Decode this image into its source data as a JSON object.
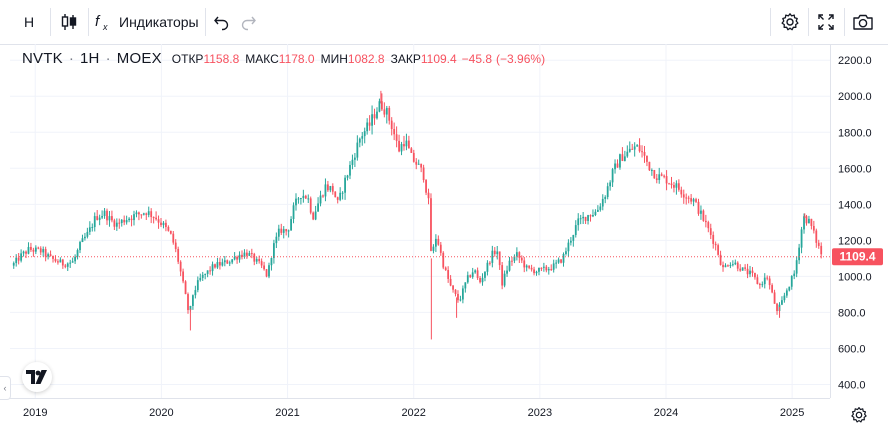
{
  "toolbar": {
    "interval_label": "Н",
    "indicators_label": "Индикаторы",
    "icons": [
      "candles-icon",
      "fx-icon",
      "undo-icon",
      "redo-icon",
      "settings-icon",
      "fullscreen-icon",
      "camera-icon"
    ]
  },
  "legend": {
    "symbol": "NVTK",
    "interval": "1H",
    "exchange": "MOEX",
    "open_label": "ОТКР",
    "open_value": "1158.8",
    "high_label": "МАКС",
    "high_value": "1178.0",
    "low_label": "МИН",
    "low_value": "1082.8",
    "close_label": "ЗАКР",
    "close_value": "1109.4",
    "change_value": "−45.8",
    "change_percent": "(−3.96%)"
  },
  "colors": {
    "up": "#26a69a",
    "down": "#f7525f",
    "grid": "#f0f3fa",
    "last_price_line": "#f7525f"
  },
  "chart_data": {
    "type": "candlestick",
    "x_unit": "year",
    "x_ticks": [
      "2019",
      "2020",
      "2021",
      "2022",
      "2023",
      "2024",
      "2025"
    ],
    "y_ticks": [
      "2200.0",
      "2000.0",
      "1800.0",
      "1600.0",
      "1400.0",
      "1200.0",
      "1000.0",
      "800.0",
      "600.0",
      "400.0"
    ],
    "ylim": [
      325,
      2290
    ],
    "xlim": [
      2018.8,
      2025.3
    ],
    "last_price": 1109.4,
    "last_price_label": "1109.4",
    "grid": true,
    "path": [
      [
        2018.82,
        1060
      ],
      [
        2018.88,
        1110
      ],
      [
        2018.95,
        1150
      ],
      [
        2019.05,
        1140
      ],
      [
        2019.12,
        1100
      ],
      [
        2019.22,
        1070
      ],
      [
        2019.3,
        1080
      ],
      [
        2019.36,
        1180
      ],
      [
        2019.42,
        1240
      ],
      [
        2019.48,
        1330
      ],
      [
        2019.55,
        1350
      ],
      [
        2019.6,
        1310
      ],
      [
        2019.65,
        1290
      ],
      [
        2019.72,
        1320
      ],
      [
        2019.8,
        1340
      ],
      [
        2019.88,
        1360
      ],
      [
        2019.95,
        1330
      ],
      [
        2020.02,
        1280
      ],
      [
        2020.08,
        1220
      ],
      [
        2020.12,
        1130
      ],
      [
        2020.16,
        1000
      ],
      [
        2020.2,
        860
      ],
      [
        2020.22,
        780
      ],
      [
        2020.25,
        900
      ],
      [
        2020.3,
        980
      ],
      [
        2020.36,
        1020
      ],
      [
        2020.42,
        1060
      ],
      [
        2020.48,
        1070
      ],
      [
        2020.55,
        1090
      ],
      [
        2020.62,
        1120
      ],
      [
        2020.68,
        1130
      ],
      [
        2020.74,
        1090
      ],
      [
        2020.8,
        1050
      ],
      [
        2020.84,
        1000
      ],
      [
        2020.88,
        1150
      ],
      [
        2020.94,
        1260
      ],
      [
        2021.0,
        1250
      ],
      [
        2021.05,
        1380
      ],
      [
        2021.1,
        1460
      ],
      [
        2021.16,
        1440
      ],
      [
        2021.2,
        1330
      ],
      [
        2021.25,
        1420
      ],
      [
        2021.3,
        1500
      ],
      [
        2021.36,
        1480
      ],
      [
        2021.4,
        1400
      ],
      [
        2021.45,
        1520
      ],
      [
        2021.52,
        1660
      ],
      [
        2021.58,
        1780
      ],
      [
        2021.65,
        1840
      ],
      [
        2021.7,
        1920
      ],
      [
        2021.74,
        1960
      ],
      [
        2021.78,
        1920
      ],
      [
        2021.83,
        1830
      ],
      [
        2021.88,
        1700
      ],
      [
        2021.93,
        1760
      ],
      [
        2021.98,
        1660
      ],
      [
        2022.03,
        1620
      ],
      [
        2022.08,
        1560
      ],
      [
        2022.12,
        1400
      ],
      [
        2022.14,
        1100
      ],
      [
        2022.18,
        1230
      ],
      [
        2022.24,
        1050
      ],
      [
        2022.3,
        930
      ],
      [
        2022.36,
        860
      ],
      [
        2022.42,
        980
      ],
      [
        2022.48,
        1040
      ],
      [
        2022.52,
        960
      ],
      [
        2022.57,
        1040
      ],
      [
        2022.62,
        1120
      ],
      [
        2022.66,
        1150
      ],
      [
        2022.7,
        960
      ],
      [
        2022.76,
        1080
      ],
      [
        2022.82,
        1120
      ],
      [
        2022.9,
        1040
      ],
      [
        2022.98,
        1030
      ],
      [
        2023.05,
        1040
      ],
      [
        2023.12,
        1060
      ],
      [
        2023.18,
        1100
      ],
      [
        2023.24,
        1200
      ],
      [
        2023.3,
        1300
      ],
      [
        2023.38,
        1340
      ],
      [
        2023.45,
        1360
      ],
      [
        2023.52,
        1460
      ],
      [
        2023.58,
        1580
      ],
      [
        2023.64,
        1660
      ],
      [
        2023.7,
        1690
      ],
      [
        2023.76,
        1720
      ],
      [
        2023.8,
        1700
      ],
      [
        2023.86,
        1620
      ],
      [
        2023.92,
        1560
      ],
      [
        2024.0,
        1540
      ],
      [
        2024.08,
        1500
      ],
      [
        2024.16,
        1450
      ],
      [
        2024.22,
        1420
      ],
      [
        2024.28,
        1340
      ],
      [
        2024.35,
        1240
      ],
      [
        2024.4,
        1160
      ],
      [
        2024.45,
        1040
      ],
      [
        2024.5,
        1080
      ],
      [
        2024.55,
        1070
      ],
      [
        2024.62,
        1030
      ],
      [
        2024.68,
        1010
      ],
      [
        2024.74,
        950
      ],
      [
        2024.8,
        1000
      ],
      [
        2024.85,
        880
      ],
      [
        2024.88,
        800
      ],
      [
        2024.92,
        860
      ],
      [
        2024.96,
        930
      ],
      [
        2025.02,
        1020
      ],
      [
        2025.06,
        1200
      ],
      [
        2025.09,
        1330
      ],
      [
        2025.14,
        1300
      ],
      [
        2025.19,
        1200
      ],
      [
        2025.24,
        1109
      ]
    ],
    "low_wicks": [
      [
        2020.23,
        700
      ],
      [
        2022.14,
        650
      ],
      [
        2022.34,
        770
      ],
      [
        2024.9,
        770
      ]
    ],
    "high_wicks": [
      [
        2021.74,
        2030
      ],
      [
        2023.79,
        1760
      ],
      [
        2025.1,
        1350
      ]
    ]
  }
}
